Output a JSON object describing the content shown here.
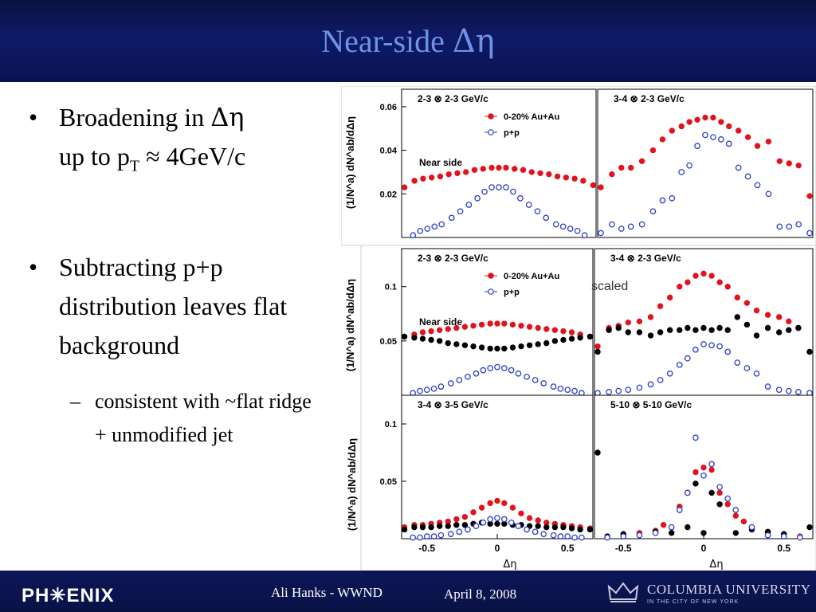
{
  "slide": {
    "title_text": "Near-side ",
    "title_symbol": "Δη",
    "bullets": [
      {
        "line1_a": "Broadening in ",
        "line1_sym": "Δη",
        "line2_a": "up to p",
        "line2_sub": "T",
        "line2_b": " ≈ 4GeV/c"
      },
      {
        "text": "Subtracting p+p distribution leaves flat background"
      }
    ],
    "sub_bullet": "consistent with ~flat ridge + unmodified jet"
  },
  "footer": {
    "logo": "PH✳ENIX",
    "author": "Ali Hanks - WWND",
    "date": "April 8, 2008",
    "university": "COLUMBIA UNIVERSITY",
    "university_sub": "IN THE CITY OF NEW YORK"
  },
  "colors": {
    "header_bg": "#0e1a68",
    "title": "#6f92e8",
    "auau": "#e0141e",
    "pp": "#2a3fc8",
    "subtracted": "#000000"
  },
  "chart_data": [
    {
      "type": "scatter",
      "title": "2-3 ⊗ 2-3 GeV/c",
      "annotation": "Near side",
      "ylabel": "(1/N^a) dN^ab/dΔη",
      "xlim": [
        -0.68,
        0.68
      ],
      "ylim": [
        0,
        0.068
      ],
      "yticks": [
        0.02,
        0.04,
        0.06
      ],
      "ytick_labels": [
        "0.02",
        "0.04",
        "0.06"
      ],
      "legend": [
        {
          "name": "0-20% Au+Au",
          "marker": "filled-red"
        },
        {
          "name": "p+p",
          "marker": "open-blue"
        }
      ],
      "series": [
        {
          "name": "0-20% Au+Au",
          "x": [
            -0.66,
            -0.59,
            -0.53,
            -0.47,
            -0.41,
            -0.35,
            -0.29,
            -0.23,
            -0.17,
            -0.11,
            -0.05,
            0.0,
            0.05,
            0.11,
            0.17,
            0.23,
            0.29,
            0.35,
            0.41,
            0.47,
            0.53,
            0.59,
            0.66
          ],
          "y": [
            0.023,
            0.026,
            0.027,
            0.0275,
            0.028,
            0.029,
            0.0295,
            0.03,
            0.031,
            0.0315,
            0.032,
            0.032,
            0.032,
            0.0315,
            0.031,
            0.03,
            0.0295,
            0.029,
            0.028,
            0.0275,
            0.027,
            0.026,
            0.024
          ]
        },
        {
          "name": "p+p",
          "x": [
            -0.6,
            -0.55,
            -0.5,
            -0.45,
            -0.4,
            -0.33,
            -0.27,
            -0.21,
            -0.15,
            -0.1,
            -0.05,
            0.0,
            0.05,
            0.1,
            0.15,
            0.21,
            0.27,
            0.33,
            0.4,
            0.45,
            0.5,
            0.55,
            0.6
          ],
          "y": [
            0.001,
            0.003,
            0.004,
            0.005,
            0.006,
            0.009,
            0.012,
            0.015,
            0.018,
            0.021,
            0.023,
            0.023,
            0.023,
            0.021,
            0.018,
            0.015,
            0.012,
            0.009,
            0.006,
            0.005,
            0.004,
            0.003,
            0.001
          ]
        }
      ]
    },
    {
      "type": "scatter",
      "title": "3-4 ⊗ 2-3 GeV/c",
      "xlim": [
        -0.68,
        0.68
      ],
      "ylim": [
        0,
        0.068
      ],
      "series": [
        {
          "name": "0-20% Au+Au",
          "x": [
            -0.66,
            -0.59,
            -0.53,
            -0.47,
            -0.4,
            -0.33,
            -0.27,
            -0.21,
            -0.15,
            -0.1,
            -0.05,
            0.0,
            0.05,
            0.1,
            0.15,
            0.21,
            0.27,
            0.33,
            0.4,
            0.47,
            0.53,
            0.59,
            0.66
          ],
          "y": [
            0.023,
            0.029,
            0.032,
            0.032,
            0.035,
            0.04,
            0.045,
            0.049,
            0.051,
            0.053,
            0.054,
            0.055,
            0.055,
            0.053,
            0.051,
            0.049,
            0.046,
            0.042,
            0.044,
            0.035,
            0.034,
            0.033,
            0.019
          ]
        },
        {
          "name": "p+p",
          "x": [
            -0.66,
            -0.59,
            -0.53,
            -0.47,
            -0.4,
            -0.33,
            -0.27,
            -0.21,
            -0.15,
            -0.1,
            -0.05,
            0.0,
            0.05,
            0.1,
            0.15,
            0.21,
            0.27,
            0.33,
            0.4,
            0.47,
            0.53,
            0.59,
            0.66
          ],
          "y": [
            0.002,
            0.006,
            0.004,
            0.005,
            0.006,
            0.012,
            0.017,
            0.018,
            0.03,
            0.033,
            0.042,
            0.047,
            0.046,
            0.045,
            0.043,
            0.032,
            0.028,
            0.024,
            0.02,
            0.005,
            0.005,
            0.006,
            0.002
          ]
        }
      ]
    },
    {
      "type": "scatter",
      "title": "2-3 ⊗ 2-3 GeV/c",
      "annotation": "Near side",
      "xlim": [
        -0.68,
        0.68
      ],
      "ylim": [
        0,
        0.135
      ],
      "yticks": [
        0.05,
        0.1
      ],
      "ytick_labels": [
        "0.05",
        "0.1"
      ],
      "legend": [
        {
          "name": "0-20% Au+Au",
          "marker": "filled-red"
        },
        {
          "name": "p+p",
          "marker": "open-blue"
        }
      ],
      "series": [
        {
          "name": "0-20% Au+Au",
          "x": [
            -0.66,
            -0.59,
            -0.53,
            -0.47,
            -0.41,
            -0.35,
            -0.29,
            -0.23,
            -0.17,
            -0.11,
            -0.05,
            0.0,
            0.05,
            0.11,
            0.17,
            0.23,
            0.29,
            0.35,
            0.41,
            0.47,
            0.53,
            0.59,
            0.66
          ],
          "y": [
            0.054,
            0.056,
            0.058,
            0.059,
            0.06,
            0.061,
            0.062,
            0.063,
            0.064,
            0.065,
            0.066,
            0.066,
            0.066,
            0.065,
            0.064,
            0.063,
            0.062,
            0.061,
            0.06,
            0.059,
            0.058,
            0.056,
            0.054
          ]
        },
        {
          "name": "subtracted",
          "x": [
            -0.66,
            -0.59,
            -0.53,
            -0.47,
            -0.41,
            -0.35,
            -0.29,
            -0.23,
            -0.17,
            -0.11,
            -0.05,
            0.0,
            0.05,
            0.11,
            0.17,
            0.23,
            0.29,
            0.35,
            0.41,
            0.47,
            0.53,
            0.59,
            0.66
          ],
          "y": [
            0.054,
            0.053,
            0.052,
            0.051,
            0.05,
            0.048,
            0.047,
            0.046,
            0.045,
            0.044,
            0.043,
            0.043,
            0.043,
            0.044,
            0.045,
            0.046,
            0.047,
            0.048,
            0.05,
            0.051,
            0.052,
            0.053,
            0.054
          ]
        },
        {
          "name": "p+p",
          "x": [
            -0.6,
            -0.55,
            -0.5,
            -0.45,
            -0.4,
            -0.33,
            -0.27,
            -0.21,
            -0.15,
            -0.1,
            -0.05,
            0.0,
            0.05,
            0.1,
            0.15,
            0.21,
            0.27,
            0.33,
            0.4,
            0.45,
            0.5,
            0.55,
            0.6
          ],
          "y": [
            0.002,
            0.004,
            0.005,
            0.006,
            0.008,
            0.011,
            0.014,
            0.017,
            0.02,
            0.023,
            0.025,
            0.026,
            0.025,
            0.023,
            0.02,
            0.017,
            0.014,
            0.011,
            0.008,
            0.006,
            0.005,
            0.004,
            0.002
          ]
        }
      ]
    },
    {
      "type": "scatter",
      "title": "3-4 ⊗ 2-3 GeV/c",
      "annotation": "scaled",
      "xlim": [
        -0.68,
        0.68
      ],
      "ylim": [
        0,
        0.135
      ],
      "series": [
        {
          "name": "0-20% Au+Au",
          "x": [
            -0.66,
            -0.59,
            -0.53,
            -0.47,
            -0.4,
            -0.33,
            -0.27,
            -0.21,
            -0.15,
            -0.1,
            -0.05,
            0.0,
            0.05,
            0.1,
            0.15,
            0.21,
            0.27,
            0.33,
            0.4,
            0.47,
            0.53,
            0.59,
            0.66
          ],
          "y": [
            0.045,
            0.062,
            0.064,
            0.067,
            0.068,
            0.072,
            0.082,
            0.09,
            0.1,
            0.104,
            0.11,
            0.112,
            0.11,
            0.104,
            0.1,
            0.09,
            0.085,
            0.078,
            0.074,
            0.072,
            0.068,
            0.062,
            0.04
          ]
        },
        {
          "name": "subtracted",
          "x": [
            -0.66,
            -0.59,
            -0.53,
            -0.47,
            -0.4,
            -0.33,
            -0.27,
            -0.21,
            -0.15,
            -0.1,
            -0.05,
            0.0,
            0.05,
            0.1,
            0.15,
            0.21,
            0.27,
            0.33,
            0.4,
            0.47,
            0.53,
            0.59,
            0.66
          ],
          "y": [
            0.04,
            0.06,
            0.062,
            0.058,
            0.058,
            0.055,
            0.058,
            0.06,
            0.06,
            0.062,
            0.06,
            0.062,
            0.06,
            0.062,
            0.06,
            0.072,
            0.065,
            0.055,
            0.062,
            0.058,
            0.06,
            0.062,
            0.04
          ]
        },
        {
          "name": "p+p",
          "x": [
            -0.66,
            -0.59,
            -0.53,
            -0.47,
            -0.4,
            -0.33,
            -0.27,
            -0.21,
            -0.15,
            -0.1,
            -0.05,
            0.0,
            0.05,
            0.1,
            0.15,
            0.21,
            0.27,
            0.33,
            0.4,
            0.47,
            0.53,
            0.59,
            0.66
          ],
          "y": [
            0.002,
            0.003,
            0.004,
            0.005,
            0.007,
            0.01,
            0.014,
            0.02,
            0.028,
            0.034,
            0.042,
            0.047,
            0.046,
            0.045,
            0.04,
            0.03,
            0.025,
            0.02,
            0.008,
            0.005,
            0.004,
            0.003,
            0.002
          ]
        }
      ]
    },
    {
      "type": "scatter",
      "title": "3-4 ⊗ 3-5 GeV/c",
      "xlabel": "Δη",
      "xlim": [
        -0.68,
        0.68
      ],
      "ylim": [
        0,
        0.125
      ],
      "yticks": [
        0.05,
        0.1
      ],
      "ytick_labels": [
        "0.05",
        "0.1"
      ],
      "xticks": [
        -0.5,
        0,
        0.5
      ],
      "xtick_labels": [
        "-0.5",
        "0",
        "0.5"
      ],
      "series": [
        {
          "name": "0-20% Au+Au",
          "x": [
            -0.66,
            -0.59,
            -0.53,
            -0.47,
            -0.41,
            -0.35,
            -0.29,
            -0.23,
            -0.17,
            -0.11,
            -0.05,
            0.0,
            0.05,
            0.11,
            0.17,
            0.23,
            0.29,
            0.35,
            0.41,
            0.47,
            0.53,
            0.59,
            0.66
          ],
          "y": [
            0.01,
            0.012,
            0.012,
            0.013,
            0.014,
            0.015,
            0.017,
            0.019,
            0.023,
            0.027,
            0.031,
            0.033,
            0.031,
            0.027,
            0.022,
            0.018,
            0.016,
            0.014,
            0.013,
            0.012,
            0.011,
            0.01,
            0.009
          ]
        },
        {
          "name": "subtracted",
          "x": [
            -0.66,
            -0.59,
            -0.53,
            -0.47,
            -0.41,
            -0.35,
            -0.29,
            -0.23,
            -0.17,
            -0.11,
            -0.05,
            0.0,
            0.05,
            0.11,
            0.17,
            0.23,
            0.29,
            0.35,
            0.41,
            0.47,
            0.53,
            0.59,
            0.66
          ],
          "y": [
            0.008,
            0.01,
            0.01,
            0.01,
            0.011,
            0.011,
            0.012,
            0.012,
            0.013,
            0.014,
            0.013,
            0.013,
            0.013,
            0.012,
            0.012,
            0.011,
            0.011,
            0.01,
            0.01,
            0.01,
            0.009,
            0.008,
            0.008
          ]
        },
        {
          "name": "p+p",
          "x": [
            -0.6,
            -0.55,
            -0.5,
            -0.45,
            -0.4,
            -0.33,
            -0.27,
            -0.21,
            -0.15,
            -0.1,
            -0.05,
            0.0,
            0.05,
            0.1,
            0.15,
            0.21,
            0.27,
            0.33,
            0.4,
            0.45,
            0.5,
            0.55,
            0.6
          ],
          "y": [
            0.001,
            0.001,
            0.002,
            0.002,
            0.003,
            0.004,
            0.006,
            0.008,
            0.011,
            0.014,
            0.017,
            0.018,
            0.017,
            0.014,
            0.011,
            0.008,
            0.006,
            0.004,
            0.003,
            0.002,
            0.002,
            0.001,
            0.001
          ]
        }
      ]
    },
    {
      "type": "scatter",
      "title": "5-10 ⊗ 5-10 GeV/c",
      "xlabel": "Δη",
      "xlim": [
        -0.68,
        0.68
      ],
      "ylim": [
        0,
        0.125
      ],
      "xticks": [
        -0.5,
        0,
        0.5
      ],
      "xtick_labels": [
        "-0.5",
        "0",
        "0.5"
      ],
      "series": [
        {
          "name": "0-20% Au+Au",
          "x": [
            -0.6,
            -0.5,
            -0.4,
            -0.3,
            -0.25,
            -0.15,
            -0.1,
            -0.05,
            0.0,
            0.05,
            0.1,
            0.15,
            0.2,
            0.25,
            0.3,
            0.4,
            0.5,
            0.6
          ],
          "y": [
            0.002,
            0.003,
            0.005,
            0.007,
            0.012,
            0.028,
            0.04,
            0.058,
            0.062,
            0.06,
            0.04,
            0.03,
            0.02,
            0.015,
            0.01,
            0.006,
            0.004,
            0.002
          ]
        },
        {
          "name": "subtracted",
          "x": [
            -0.66,
            -0.6,
            -0.5,
            -0.4,
            -0.3,
            -0.2,
            -0.1,
            -0.05,
            0.0,
            0.05,
            0.1,
            0.2,
            0.3,
            0.4,
            0.5,
            0.66
          ],
          "y": [
            0.075,
            0.002,
            0.004,
            0.003,
            0.006,
            0.005,
            0.01,
            0.048,
            0.005,
            0.04,
            0.03,
            0.005,
            0.008,
            0.006,
            0.004,
            0.01
          ]
        },
        {
          "name": "p+p",
          "x": [
            -0.6,
            -0.5,
            -0.4,
            -0.3,
            -0.2,
            -0.15,
            -0.1,
            -0.05,
            0.0,
            0.05,
            0.1,
            0.15,
            0.2,
            0.3,
            0.4,
            0.5,
            0.6
          ],
          "y": [
            0.001,
            0.002,
            0.003,
            0.005,
            0.01,
            0.025,
            0.04,
            0.088,
            0.055,
            0.065,
            0.045,
            0.035,
            0.025,
            0.01,
            0.003,
            0.002,
            0.001
          ]
        }
      ]
    }
  ]
}
